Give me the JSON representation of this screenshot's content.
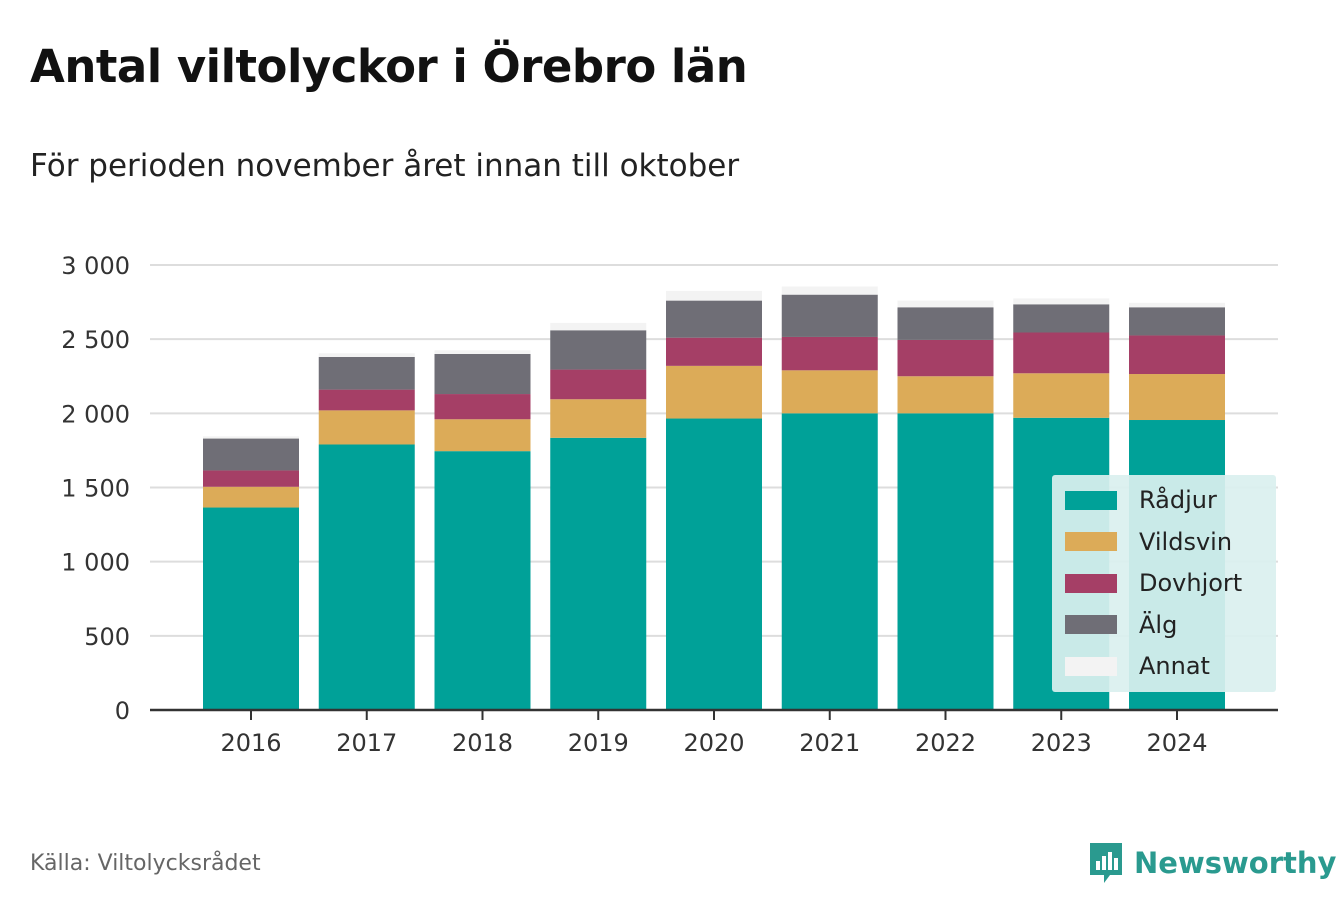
{
  "title": "Antal viltolyckor i Örebro län",
  "subtitle": "För perioden november året innan till oktober",
  "source": "Källa: Viltolycksrådet",
  "brand": {
    "name": "Newsworthy",
    "icon": "newsworthy-logo-icon",
    "color": "#2a9a8f"
  },
  "chart_data": {
    "type": "bar",
    "stacked": true,
    "categories": [
      "2016",
      "2017",
      "2018",
      "2019",
      "2020",
      "2021",
      "2022",
      "2023",
      "2024"
    ],
    "series": [
      {
        "name": "Rådjur",
        "color": "#00a198",
        "values": [
          1365,
          1790,
          1745,
          1835,
          1965,
          2000,
          2000,
          1970,
          1955
        ]
      },
      {
        "name": "Vildsvin",
        "color": "#dcab58",
        "values": [
          140,
          230,
          215,
          260,
          355,
          290,
          250,
          300,
          310
        ]
      },
      {
        "name": "Dovhjort",
        "color": "#a53f66",
        "values": [
          110,
          140,
          170,
          200,
          190,
          225,
          245,
          275,
          260
        ]
      },
      {
        "name": "Älg",
        "color": "#6f6e76",
        "values": [
          215,
          220,
          270,
          265,
          250,
          285,
          220,
          190,
          190
        ]
      },
      {
        "name": "Annat",
        "color": "#f3f3f3",
        "values": [
          15,
          25,
          25,
          50,
          65,
          55,
          45,
          40,
          30
        ]
      }
    ],
    "y_ticks": [
      0,
      500,
      1000,
      1500,
      2000,
      2500,
      3000
    ],
    "y_tick_labels": [
      "0",
      "500",
      "1 000",
      "1 500",
      "2 000",
      "2 500",
      "3 000"
    ],
    "ylim": [
      0,
      3000
    ],
    "grid": true,
    "legend_position": "bottom-right"
  }
}
